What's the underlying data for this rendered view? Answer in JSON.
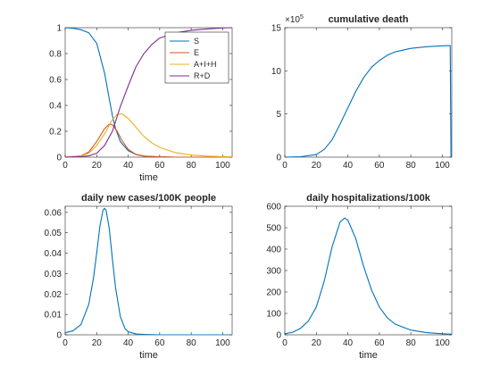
{
  "figure": {
    "background": "#ffffff"
  },
  "colors": {
    "blue": "#0072BD",
    "orange": "#D95319",
    "yellow": "#EDB120",
    "purple": "#7E2F8E",
    "axis": "#262626"
  },
  "chart_data": [
    {
      "id": "a",
      "type": "line",
      "title": "",
      "xlabel": "time",
      "ylabel": "",
      "xlim": [
        0,
        106
      ],
      "ylim": [
        0,
        1
      ],
      "xticks": [
        0,
        20,
        40,
        60,
        80,
        100
      ],
      "yticks": [
        0,
        0.2,
        0.4,
        0.6,
        0.8,
        1
      ],
      "ytick_labels": [
        "0",
        "0.2",
        "0.4",
        "0.6",
        "0.8",
        "1"
      ],
      "legend": "top-right",
      "series": [
        {
          "name": "S",
          "color": "#0072BD",
          "x": [
            0,
            5,
            10,
            15,
            20,
            25,
            28,
            30,
            32,
            35,
            40,
            45,
            50,
            60,
            70,
            80,
            106
          ],
          "y": [
            1,
            0.995,
            0.985,
            0.96,
            0.88,
            0.65,
            0.45,
            0.32,
            0.22,
            0.12,
            0.05,
            0.02,
            0.008,
            0.002,
            0,
            0,
            0
          ]
        },
        {
          "name": "E",
          "color": "#D95319",
          "x": [
            0,
            10,
            15,
            20,
            25,
            28,
            30,
            33,
            36,
            40,
            45,
            50,
            60,
            70,
            106
          ],
          "y": [
            0,
            0.01,
            0.04,
            0.12,
            0.22,
            0.255,
            0.25,
            0.2,
            0.13,
            0.06,
            0.02,
            0.008,
            0.002,
            0,
            0
          ]
        },
        {
          "name": "A+I+H",
          "color": "#EDB120",
          "x": [
            0,
            10,
            15,
            20,
            25,
            30,
            33,
            36,
            40,
            45,
            50,
            55,
            60,
            70,
            80,
            90,
            100,
            106
          ],
          "y": [
            0,
            0.01,
            0.03,
            0.09,
            0.18,
            0.29,
            0.33,
            0.335,
            0.3,
            0.23,
            0.16,
            0.11,
            0.075,
            0.035,
            0.017,
            0.008,
            0.004,
            0.002
          ]
        },
        {
          "name": "R+D",
          "color": "#7E2F8E",
          "x": [
            0,
            10,
            15,
            20,
            25,
            30,
            35,
            40,
            45,
            50,
            55,
            60,
            70,
            80,
            90,
            100,
            106
          ],
          "y": [
            0,
            0.005,
            0.01,
            0.03,
            0.09,
            0.2,
            0.39,
            0.55,
            0.7,
            0.8,
            0.87,
            0.92,
            0.96,
            0.98,
            0.99,
            0.998,
            1
          ]
        }
      ]
    },
    {
      "id": "b",
      "type": "line",
      "title": "cumulative death",
      "xlabel": "",
      "ylabel": "",
      "xlim": [
        0,
        106
      ],
      "ylim": [
        0,
        1500000
      ],
      "xticks": [
        0,
        20,
        40,
        60,
        80,
        100
      ],
      "yticks": [
        0,
        500000,
        1000000,
        1500000
      ],
      "ytick_labels": [
        "0",
        "5",
        "10",
        "15"
      ],
      "y_exponent": "×10",
      "y_exponent_power": "5",
      "series": [
        {
          "name": "",
          "color": "#0072BD",
          "x": [
            0,
            10,
            20,
            25,
            30,
            35,
            40,
            45,
            50,
            55,
            60,
            65,
            70,
            80,
            90,
            100,
            104.5,
            105,
            105.5
          ],
          "y": [
            0,
            5000,
            30000,
            90000,
            200000,
            380000,
            570000,
            760000,
            920000,
            1040000,
            1120000,
            1180000,
            1220000,
            1260000,
            1280000,
            1290000,
            1292000,
            1292000,
            0
          ]
        }
      ]
    },
    {
      "id": "c",
      "type": "line",
      "title": "daily new cases/100K people",
      "xlabel": "time",
      "ylabel": "",
      "xlim": [
        0,
        106
      ],
      "ylim": [
        0,
        0.063
      ],
      "xticks": [
        0,
        20,
        40,
        60,
        80,
        100
      ],
      "yticks": [
        0,
        0.01,
        0.02,
        0.03,
        0.04,
        0.05,
        0.06
      ],
      "ytick_labels": [
        "0",
        "0.01",
        "0.02",
        "0.03",
        "0.04",
        "0.05",
        "0.06"
      ],
      "series": [
        {
          "name": "",
          "color": "#0072BD",
          "x": [
            0,
            5,
            10,
            15,
            18,
            20,
            22,
            24,
            25,
            26,
            28,
            30,
            32,
            35,
            38,
            40,
            45,
            50,
            60,
            106
          ],
          "y": [
            0.001,
            0.002,
            0.005,
            0.015,
            0.028,
            0.04,
            0.053,
            0.061,
            0.062,
            0.061,
            0.052,
            0.037,
            0.023,
            0.009,
            0.003,
            0.0015,
            0.0004,
            0.0002,
            0,
            0
          ]
        }
      ]
    },
    {
      "id": "d",
      "type": "line",
      "title": "daily hospitalizations/100k",
      "xlabel": "time",
      "ylabel": "",
      "xlim": [
        0,
        106
      ],
      "ylim": [
        0,
        600
      ],
      "xticks": [
        0,
        20,
        40,
        60,
        80,
        100
      ],
      "yticks": [
        0,
        100,
        200,
        300,
        400,
        500,
        600
      ],
      "ytick_labels": [
        "0",
        "100",
        "200",
        "300",
        "400",
        "500",
        "600"
      ],
      "series": [
        {
          "name": "",
          "color": "#0072BD",
          "x": [
            0,
            5,
            10,
            15,
            20,
            25,
            30,
            35,
            38,
            40,
            45,
            50,
            55,
            60,
            65,
            70,
            80,
            90,
            100,
            106
          ],
          "y": [
            5,
            12,
            30,
            65,
            130,
            250,
            410,
            525,
            545,
            535,
            450,
            320,
            210,
            130,
            80,
            50,
            22,
            10,
            5,
            3
          ]
        }
      ]
    }
  ]
}
